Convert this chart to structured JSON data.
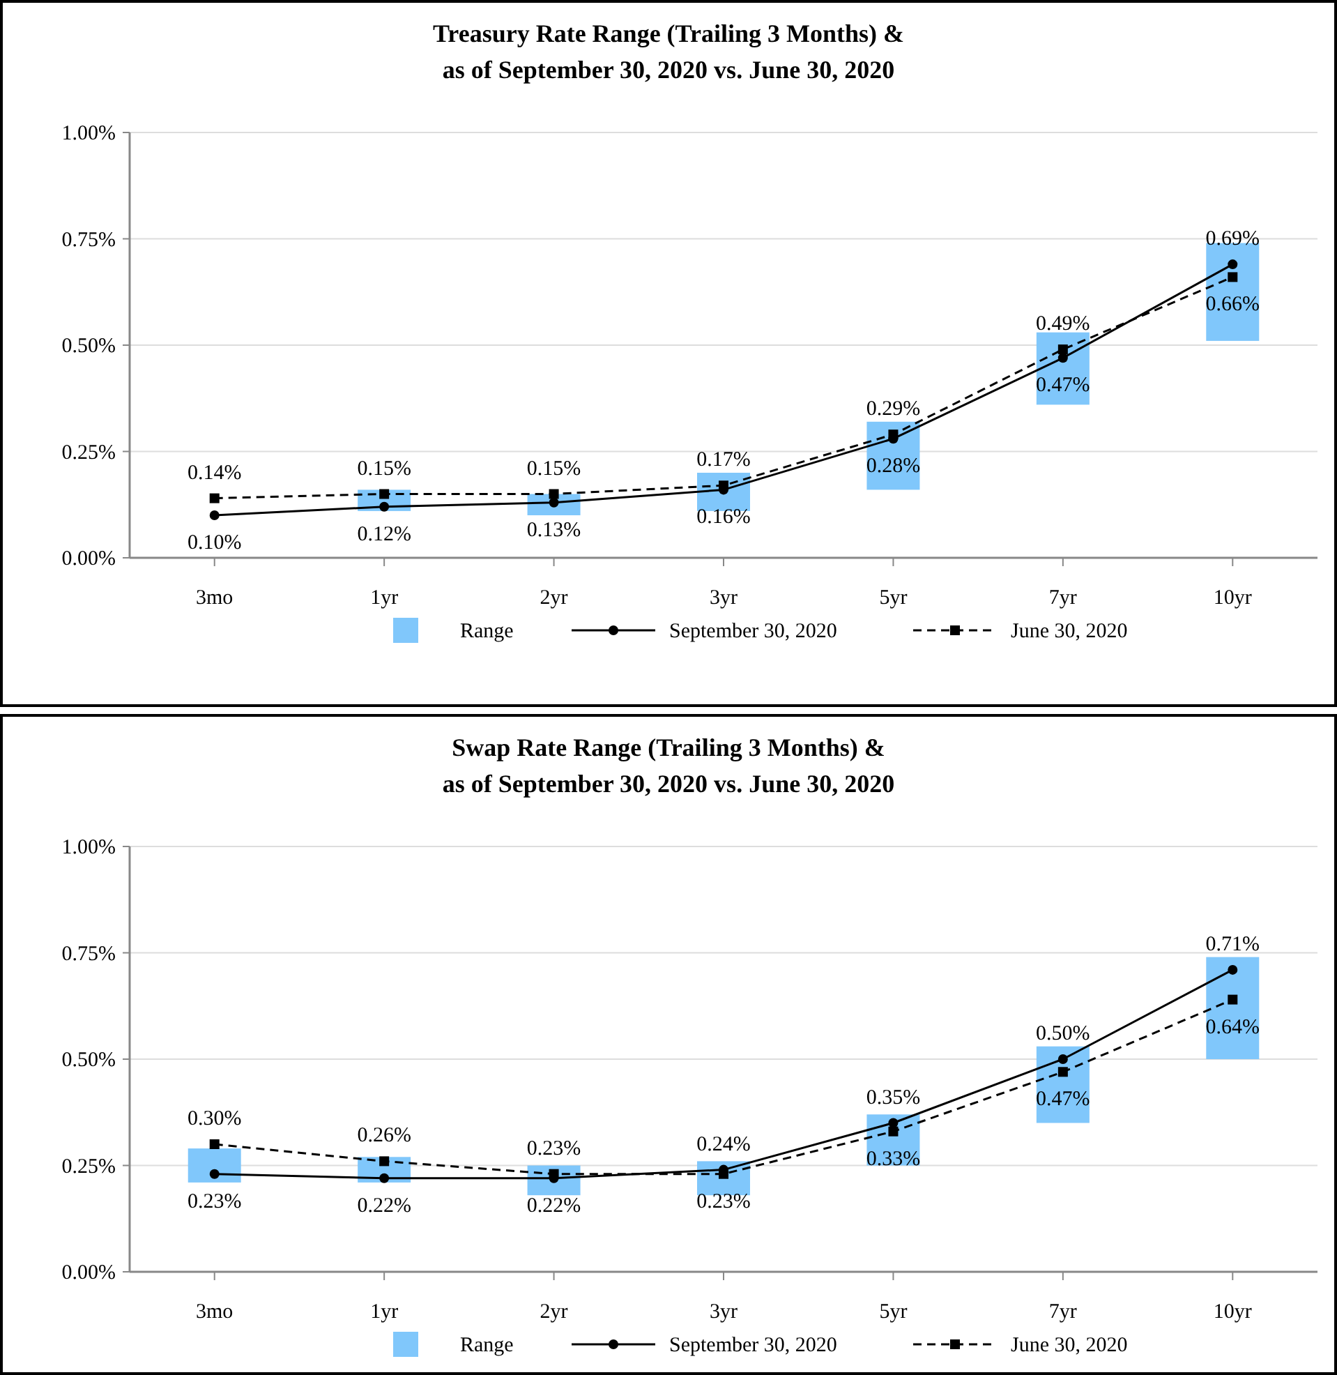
{
  "chart_data": [
    {
      "type": "bar",
      "title": "Treasury Rate Range (Trailing 3 Months) &\nas of September 30, 2020 vs. June 30, 2020",
      "categories": [
        "3mo",
        "1yr",
        "2yr",
        "3yr",
        "5yr",
        "7yr",
        "10yr"
      ],
      "series": [
        {
          "name": "Range",
          "color": "#80c7fb",
          "base": [
            null,
            0.11,
            0.1,
            0.11,
            0.16,
            0.36,
            0.51
          ],
          "values": [
            null,
            0.05,
            0.05,
            0.09,
            0.16,
            0.17,
            0.23
          ]
        },
        {
          "name": "September 30, 2020",
          "type": "line",
          "color": "#000000",
          "marker": "circle",
          "line_style": "solid",
          "values": [
            0.1,
            0.12,
            0.13,
            0.16,
            0.28,
            0.47,
            0.69
          ],
          "value_labels": [
            "0.10%",
            "0.12%",
            "0.13%",
            "0.16%",
            "0.28%",
            "0.47%",
            "0.69%"
          ]
        },
        {
          "name": "June 30, 2020",
          "type": "line",
          "color": "#000000",
          "marker": "square",
          "line_style": "dashed",
          "values": [
            0.14,
            0.15,
            0.15,
            0.17,
            0.29,
            0.49,
            0.66
          ],
          "value_labels": [
            "0.14%",
            "0.15%",
            "0.15%",
            "0.17%",
            "0.29%",
            "0.49%",
            "0.66%"
          ]
        }
      ],
      "ylim": [
        0,
        1
      ],
      "yticks": [
        {
          "value": 0,
          "label": "0.00%"
        },
        {
          "value": 0.25,
          "label": "0.25%"
        },
        {
          "value": 0.5,
          "label": "0.50%"
        },
        {
          "value": 0.75,
          "label": "0.75%"
        },
        {
          "value": 1,
          "label": "1.00%"
        }
      ],
      "grid": "y",
      "legend": "bottom"
    },
    {
      "type": "bar",
      "title": "Swap Rate Range (Trailing 3 Months) &\nas of September 30, 2020 vs. June 30, 2020",
      "categories": [
        "3mo",
        "1yr",
        "2yr",
        "3yr",
        "5yr",
        "7yr",
        "10yr"
      ],
      "series": [
        {
          "name": "Range",
          "color": "#80c7fb",
          "base": [
            0.21,
            0.21,
            0.18,
            0.18,
            0.25,
            0.35,
            0.5
          ],
          "values": [
            0.08,
            0.06,
            0.07,
            0.08,
            0.12,
            0.18,
            0.24
          ]
        },
        {
          "name": "September 30, 2020",
          "type": "line",
          "color": "#000000",
          "marker": "circle",
          "line_style": "solid",
          "values": [
            0.23,
            0.22,
            0.22,
            0.24,
            0.35,
            0.5,
            0.71
          ],
          "value_labels": [
            "0.23%",
            "0.22%",
            "0.22%",
            "0.24%",
            "0.35%",
            "0.50%",
            "0.71%"
          ]
        },
        {
          "name": "June 30, 2020",
          "type": "line",
          "color": "#000000",
          "marker": "square",
          "line_style": "dashed",
          "values": [
            0.3,
            0.26,
            0.23,
            0.23,
            0.33,
            0.47,
            0.64
          ],
          "value_labels": [
            "0.30%",
            "0.26%",
            "0.23%",
            "0.23%",
            "0.33%",
            "0.47%",
            "0.64%"
          ]
        }
      ],
      "ylim": [
        0,
        1
      ],
      "yticks": [
        {
          "value": 0,
          "label": "0.00%"
        },
        {
          "value": 0.25,
          "label": "0.25%"
        },
        {
          "value": 0.5,
          "label": "0.50%"
        },
        {
          "value": 0.75,
          "label": "0.75%"
        },
        {
          "value": 1,
          "label": "1.00%"
        }
      ],
      "grid": "y",
      "legend": "bottom"
    }
  ]
}
